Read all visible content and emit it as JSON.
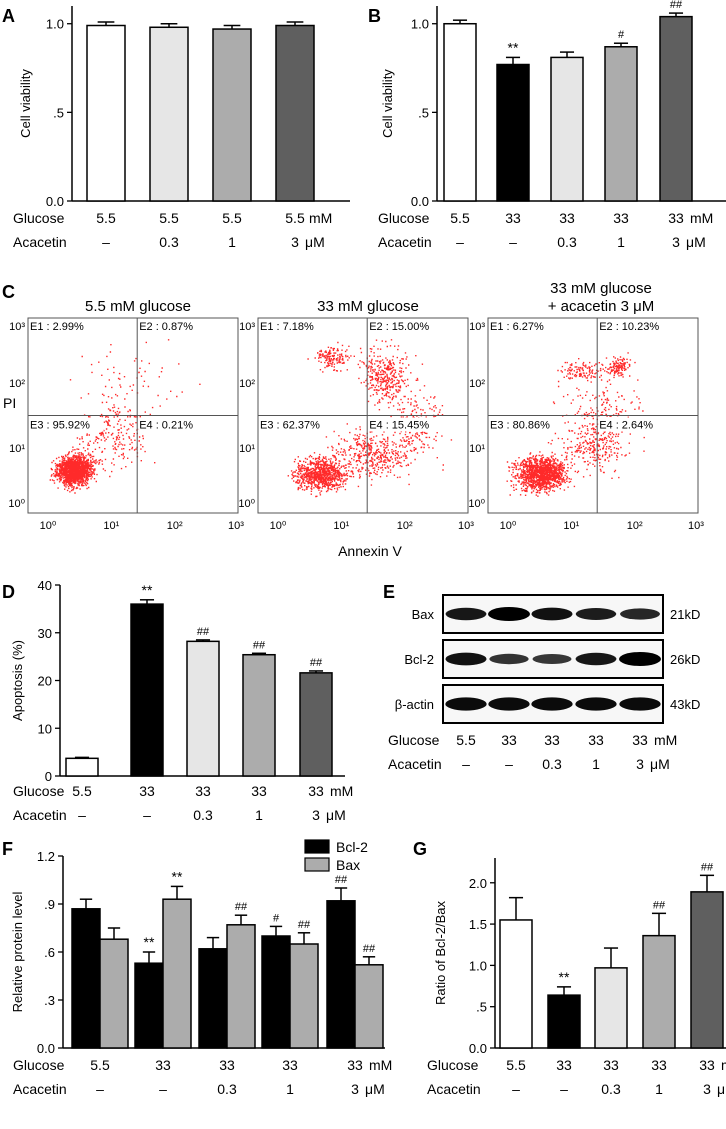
{
  "colors": {
    "white": "#ffffff",
    "black": "#000000",
    "light_gray": "#e6e6e6",
    "mid_gray": "#acacac",
    "dark_gray": "#5f5f5f",
    "dot_red": "#ff2a2a"
  },
  "panel_labels": {
    "a": "A",
    "b": "B",
    "c": "C",
    "d": "D",
    "e": "E",
    "f": "F",
    "g": "G"
  },
  "row_labels": {
    "glucose": "Glucose",
    "acacetin": "Acacetin",
    "mM": "mM",
    "uM": "μM"
  },
  "chart_data": [
    {
      "id": "A",
      "type": "bar",
      "ylabel": "Cell viability",
      "ylim": [
        0,
        1.1
      ],
      "yticks": [
        0,
        0.5,
        1.0
      ],
      "ytick_labels": [
        "0.0",
        ".5",
        "1.0"
      ],
      "categories": [
        "5.5 / –",
        "5.5 / 0.3",
        "5.5 / 1",
        "5.5 / 3"
      ],
      "glucose": [
        "5.5",
        "5.5",
        "5.5",
        "5.5"
      ],
      "acacetin": [
        "–",
        "0.3",
        "1",
        "3"
      ],
      "values": [
        0.99,
        0.98,
        0.97,
        0.99
      ],
      "errors": [
        0.02,
        0.02,
        0.02,
        0.02
      ],
      "fills": [
        "white",
        "light_gray",
        "mid_gray",
        "dark_gray"
      ],
      "sig": [
        "",
        "",
        "",
        ""
      ]
    },
    {
      "id": "B",
      "type": "bar",
      "ylabel": "Cell viability",
      "ylim": [
        0,
        1.1
      ],
      "yticks": [
        0,
        0.5,
        1.0
      ],
      "ytick_labels": [
        "0.0",
        ".5",
        "1.0"
      ],
      "categories": [
        "5.5 / –",
        "33 / –",
        "33 / 0.3",
        "33 / 1",
        "33 / 3"
      ],
      "glucose": [
        "5.5",
        "33",
        "33",
        "33",
        "33"
      ],
      "acacetin": [
        "–",
        "–",
        "0.3",
        "1",
        "3"
      ],
      "values": [
        1.0,
        0.77,
        0.81,
        0.87,
        1.04
      ],
      "errors": [
        0.02,
        0.04,
        0.03,
        0.02,
        0.02
      ],
      "fills": [
        "white",
        "black",
        "light_gray",
        "mid_gray",
        "dark_gray"
      ],
      "sig": [
        "",
        "**",
        "",
        "#",
        "##"
      ]
    },
    {
      "id": "C",
      "type": "scatter",
      "xlabel": "Annexin V",
      "ylabel": "PI",
      "x_ticks": [
        "10⁰",
        "10¹",
        "10²",
        "10³"
      ],
      "y_ticks": [
        "10⁰",
        "10¹",
        "10²",
        "10³"
      ],
      "plots": [
        {
          "title": "5.5 mM glucose",
          "title2": "",
          "E1": "E1 : 2.99%",
          "E2": "E2 : 0.87%",
          "E3": "E3 : 95.92%",
          "E4": "E4 : 0.21%"
        },
        {
          "title": "33 mM glucose",
          "title2": "",
          "E1": "E1 : 7.18%",
          "E2": "E2 : 15.00%",
          "E3": "E3 : 62.37%",
          "E4": "E4 : 15.45%"
        },
        {
          "title": "33 mM glucose",
          "title2": "+ acacetin 3 μM",
          "E1": "E1 : 6.27%",
          "E2": "E2 : 10.23%",
          "E3": "E3 : 80.86%",
          "E4": "E4 : 2.64%"
        }
      ]
    },
    {
      "id": "D",
      "type": "bar",
      "ylabel": "Apoptosis (%)",
      "ylim": [
        0,
        40
      ],
      "yticks": [
        0,
        10,
        20,
        30,
        40
      ],
      "ytick_labels": [
        "0",
        "10",
        "20",
        "30",
        "40"
      ],
      "categories": [
        "5.5 / –",
        "33 / –",
        "33 / 0.3",
        "33 / 1",
        "33 / 3"
      ],
      "glucose": [
        "5.5",
        "33",
        "33",
        "33",
        "33"
      ],
      "acacetin": [
        "–",
        "–",
        "0.3",
        "1",
        "3"
      ],
      "values": [
        3.7,
        36.0,
        28.2,
        25.4,
        21.6
      ],
      "errors": [
        0.2,
        0.9,
        0.3,
        0.3,
        0.4
      ],
      "fills": [
        "white",
        "black",
        "light_gray",
        "mid_gray",
        "dark_gray"
      ],
      "sig": [
        "",
        "**",
        "##",
        "##",
        "##"
      ]
    },
    {
      "id": "E",
      "type": "table",
      "bands": [
        {
          "label": "Bax",
          "size": "21kD",
          "intensity": [
            0.8,
            1.0,
            0.85,
            0.75,
            0.65
          ]
        },
        {
          "label": "Bcl-2",
          "size": "26kD",
          "intensity": [
            0.85,
            0.55,
            0.5,
            0.8,
            1.0
          ]
        },
        {
          "label": "β-actin",
          "size": "43kD",
          "intensity": [
            0.9,
            0.9,
            0.9,
            0.9,
            0.9
          ]
        }
      ],
      "glucose": [
        "5.5",
        "33",
        "33",
        "33",
        "33"
      ],
      "acacetin": [
        "–",
        "–",
        "0.3",
        "1",
        "3"
      ]
    },
    {
      "id": "F",
      "type": "bar",
      "ylabel": "Relative protein level",
      "ylim": [
        0,
        1.2
      ],
      "yticks": [
        0,
        0.3,
        0.6,
        0.9,
        1.2
      ],
      "ytick_labels": [
        "0.0",
        ".3",
        ".6",
        ".9",
        "1.2"
      ],
      "categories": [
        "5.5 / –",
        "33 / –",
        "33 / 0.3",
        "33 / 1",
        "33 / 3"
      ],
      "glucose": [
        "5.5",
        "33",
        "33",
        "33",
        "33"
      ],
      "acacetin": [
        "–",
        "–",
        "0.3",
        "1",
        "3"
      ],
      "series": [
        {
          "name": "Bcl-2",
          "fill": "black",
          "values": [
            0.87,
            0.53,
            0.62,
            0.7,
            0.92
          ],
          "errors": [
            0.06,
            0.07,
            0.07,
            0.06,
            0.08
          ],
          "sig": [
            "",
            "**",
            "",
            "#",
            "##"
          ]
        },
        {
          "name": "Bax",
          "fill": "mid_gray",
          "values": [
            0.68,
            0.93,
            0.77,
            0.65,
            0.52
          ],
          "errors": [
            0.07,
            0.08,
            0.06,
            0.07,
            0.05
          ],
          "sig": [
            "",
            "**",
            "##",
            "##",
            "##"
          ]
        }
      ]
    },
    {
      "id": "G",
      "type": "bar",
      "ylabel": "Ratio of Bcl-2/Bax",
      "ylim": [
        0,
        2.3
      ],
      "yticks": [
        0,
        0.5,
        1.0,
        1.5,
        2.0
      ],
      "ytick_labels": [
        "0.0",
        ".5",
        "1.0",
        "1.5",
        "2.0"
      ],
      "categories": [
        "5.5 / –",
        "33 / –",
        "33 / 0.3",
        "33 / 1",
        "33 / 3"
      ],
      "glucose": [
        "5.5",
        "33",
        "33",
        "33",
        "33"
      ],
      "acacetin": [
        "–",
        "–",
        "0.3",
        "1",
        "3"
      ],
      "values": [
        1.55,
        0.64,
        0.97,
        1.36,
        1.89
      ],
      "errors": [
        0.27,
        0.1,
        0.24,
        0.27,
        0.2
      ],
      "fills": [
        "white",
        "black",
        "light_gray",
        "mid_gray",
        "dark_gray"
      ],
      "sig": [
        "",
        "**",
        "",
        "##",
        "##"
      ]
    }
  ]
}
